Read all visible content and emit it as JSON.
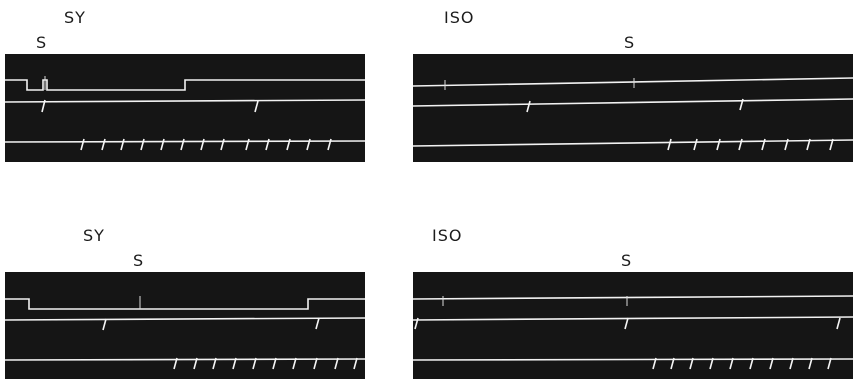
{
  "records": [
    {
      "condition": "SY",
      "stimulus_marker": "S"
    },
    {
      "condition": "ISO",
      "stimulus_marker": "S"
    },
    {
      "condition": "SY",
      "stimulus_marker": "S"
    },
    {
      "condition": "ISO",
      "stimulus_marker": "S"
    }
  ],
  "colors": {
    "background": "#151515",
    "trace": "#f2f2f2",
    "page": "#ffffff"
  }
}
